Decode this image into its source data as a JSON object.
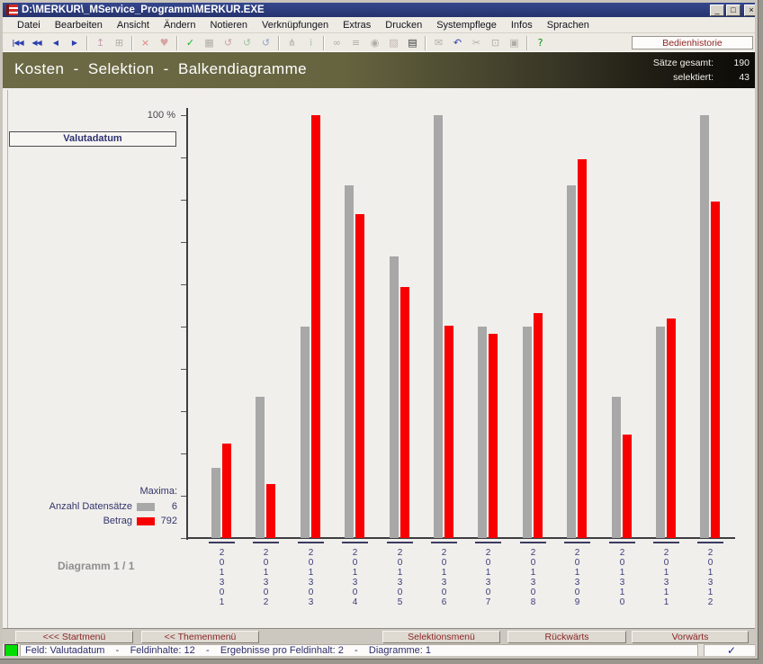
{
  "window": {
    "title": "D:\\MERKUR\\_MService_Programm\\MERKUR.EXE",
    "controls": {
      "minimize": "_",
      "maximize": "□",
      "close": "×"
    }
  },
  "menu": {
    "items": [
      "Datei",
      "Bearbeiten",
      "Ansicht",
      "Ändern",
      "Notieren",
      "Verknüpfungen",
      "Extras",
      "Drucken",
      "Systempflege",
      "Infos",
      "Sprachen"
    ]
  },
  "toolbar": {
    "history_button": "Bedienhistorie",
    "icons": [
      {
        "name": "first-record-icon",
        "glyph": "|◀◀",
        "color": "#2b3fae",
        "enabled": true,
        "nav": true
      },
      {
        "name": "fast-back-icon",
        "glyph": "◀◀",
        "color": "#2b3fae",
        "enabled": true,
        "nav": true
      },
      {
        "name": "back-icon",
        "glyph": "◀",
        "color": "#2b3fae",
        "enabled": true,
        "nav": true
      },
      {
        "name": "forward-icon",
        "glyph": "▶",
        "color": "#2b3fae",
        "enabled": true,
        "nav": true
      },
      {
        "name": "separator"
      },
      {
        "name": "import-icon",
        "glyph": "↥",
        "color": "#c89ab0",
        "enabled": false
      },
      {
        "name": "tree-icon",
        "glyph": "⊞",
        "color": "#b2aea6",
        "enabled": false
      },
      {
        "name": "separator"
      },
      {
        "name": "delete-icon",
        "glyph": "×",
        "color": "#e08080",
        "enabled": false
      },
      {
        "name": "restore-icon",
        "glyph": "♥",
        "color": "#d8a4a4",
        "enabled": false
      },
      {
        "name": "separator"
      },
      {
        "name": "confirm-icon",
        "glyph": "✓",
        "color": "#1cb41c",
        "enabled": true
      },
      {
        "name": "save-icon",
        "glyph": "▦",
        "color": "#b2aea6",
        "enabled": false
      },
      {
        "name": "undo-red-icon",
        "glyph": "↺",
        "color": "#d0a0a0",
        "enabled": false
      },
      {
        "name": "undo-green-icon",
        "glyph": "↺",
        "color": "#a4c2a4",
        "enabled": false
      },
      {
        "name": "undo-blue-icon",
        "glyph": "↺",
        "color": "#94a4cc",
        "enabled": false
      },
      {
        "name": "separator"
      },
      {
        "name": "branch-icon",
        "glyph": "⋔",
        "color": "#b2aea6",
        "enabled": false
      },
      {
        "name": "info-icon",
        "glyph": "i",
        "color": "#acc4ac",
        "enabled": false
      },
      {
        "name": "separator"
      },
      {
        "name": "binoculars-icon",
        "glyph": "∞",
        "color": "#b2aea6",
        "enabled": false
      },
      {
        "name": "list-icon",
        "glyph": "≡",
        "color": "#b2aea6",
        "enabled": false
      },
      {
        "name": "eye-icon",
        "glyph": "◉",
        "color": "#b2aea6",
        "enabled": false
      },
      {
        "name": "chart-icon",
        "glyph": "▨",
        "color": "#c2b4b4",
        "enabled": false
      },
      {
        "name": "print-icon",
        "glyph": "▤",
        "color": "#3a3a3a",
        "enabled": true
      },
      {
        "name": "separator"
      },
      {
        "name": "mail-icon",
        "glyph": "✉",
        "color": "#b2aea6",
        "enabled": false
      },
      {
        "name": "undo-icon",
        "glyph": "↶",
        "color": "#2b3fae",
        "enabled": true
      },
      {
        "name": "cut-icon",
        "glyph": "✂",
        "color": "#b2aea6",
        "enabled": false
      },
      {
        "name": "copy-icon",
        "glyph": "⊡",
        "color": "#b2aea6",
        "enabled": false
      },
      {
        "name": "paste-icon",
        "glyph": "▣",
        "color": "#b2aea6",
        "enabled": false
      },
      {
        "name": "separator"
      },
      {
        "name": "help-icon",
        "glyph": "?",
        "color": "#0a900a",
        "enabled": true
      }
    ]
  },
  "header": {
    "title": "Kosten  -  Selektion  -  Balkendiagramme",
    "stats": [
      {
        "label": "Sätze gesamt:",
        "value": "190"
      },
      {
        "label": "selektiert:",
        "value": "43"
      }
    ]
  },
  "field_selector": {
    "label": "Valutadatum"
  },
  "chart_data": {
    "type": "bar",
    "title": "Valutadatum",
    "categories": [
      "201301",
      "201302",
      "201303",
      "201304",
      "201305",
      "201306",
      "201307",
      "201308",
      "201309",
      "201310",
      "201311",
      "201312"
    ],
    "y_axis": {
      "top_label": "100 %",
      "max_pct": 100,
      "tick_step_pct": 10
    },
    "legend_title": "Maxima:",
    "legend_position": "bottom-left",
    "grid": false,
    "series": [
      {
        "name": "Anzahl Datensätze",
        "color": "#a8a8a8",
        "max": 6,
        "values": [
          1,
          2,
          3,
          5,
          4,
          6,
          3,
          3,
          5,
          2,
          3,
          6
        ],
        "values_pct": [
          16.7,
          33.3,
          50,
          83.3,
          66.7,
          100,
          50,
          50,
          83.3,
          33.3,
          50,
          100
        ]
      },
      {
        "name": "Betrag",
        "color": "#f80000",
        "max": 792,
        "values": [
          177,
          101,
          792,
          607,
          470,
          398,
          383,
          421,
          710,
          194,
          411,
          630
        ],
        "values_pct": [
          22.3,
          12.8,
          100,
          76.6,
          59.4,
          50.2,
          48.3,
          53.2,
          89.6,
          24.5,
          51.9,
          79.6
        ]
      }
    ]
  },
  "diagram_counter": "Diagramm 1 / 1",
  "nav_buttons": {
    "start": "<<< Startmenü",
    "theme": "<< Themenmenü",
    "selection": "Selektionsmenü",
    "back": "Rückwärts",
    "forward": "Vorwärts"
  },
  "statusbar": {
    "text": "Feld: Valutadatum    -    Feldinhalte: 12    -    Ergebnisse pro Feldinhalt: 2    -    Diagramme: 1",
    "check": "✓"
  }
}
